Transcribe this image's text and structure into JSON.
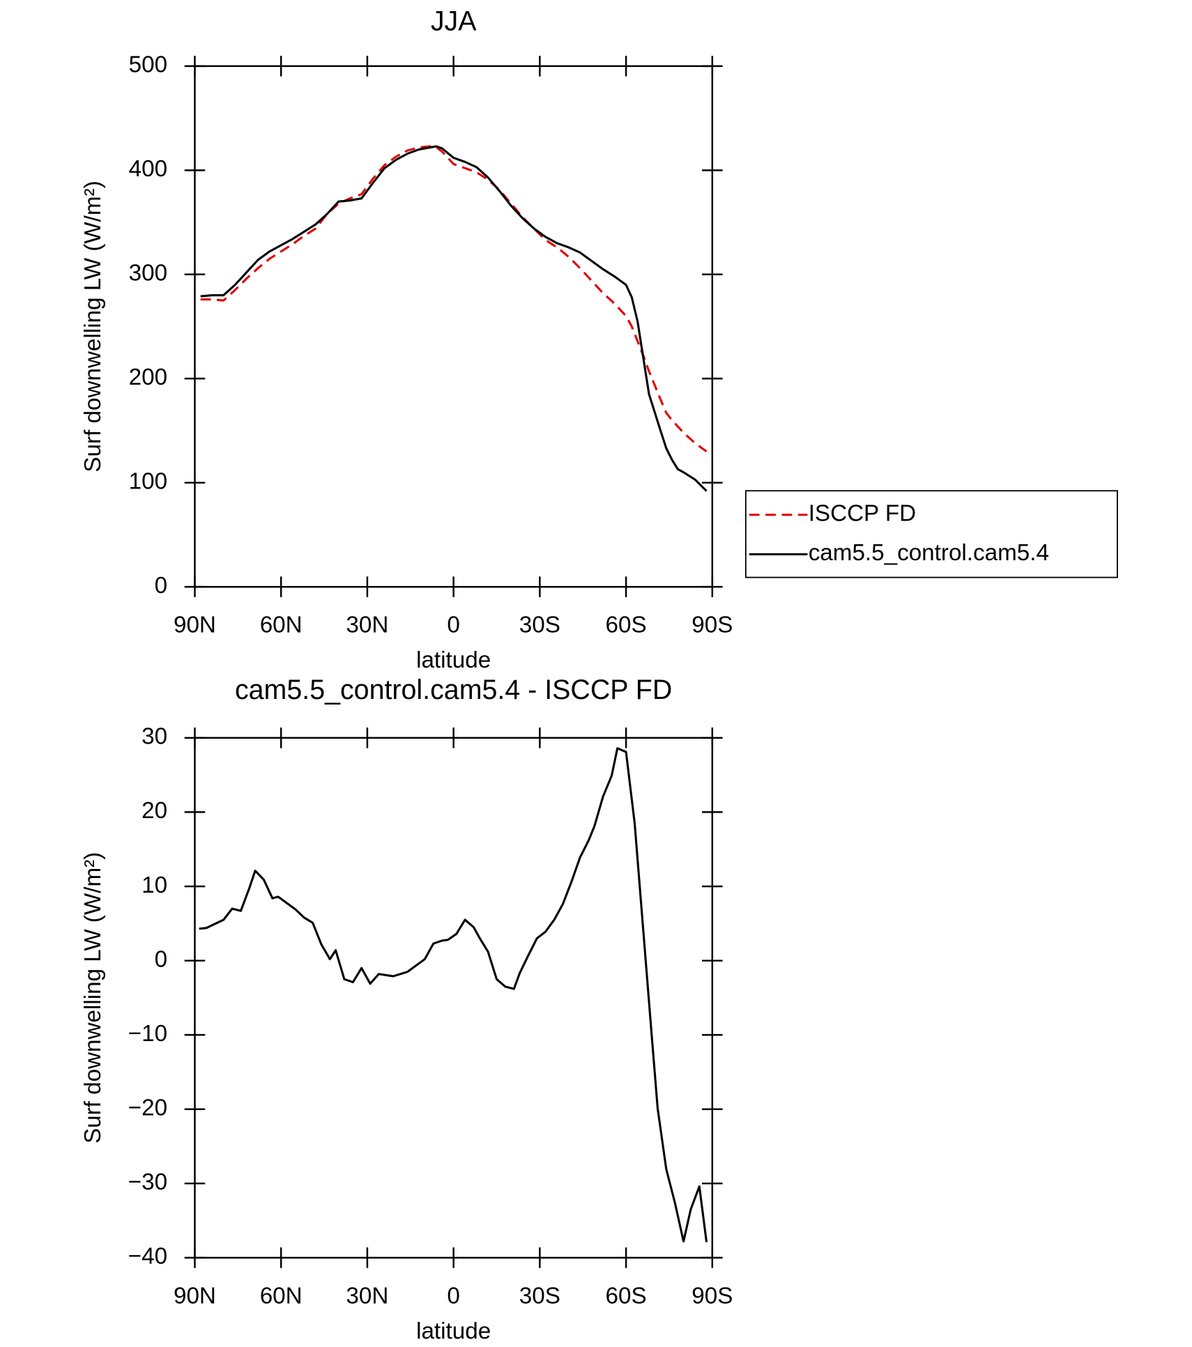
{
  "chart_data": [
    {
      "type": "line",
      "title": "JJA",
      "xlabel": "latitude",
      "ylabel": "Surf downwelling LW (W/m²)",
      "x": [
        88,
        84,
        80,
        76,
        72,
        68,
        64,
        60,
        56,
        52,
        48,
        44,
        40,
        36,
        32,
        28,
        24,
        20,
        16,
        12,
        8,
        6,
        4,
        0,
        -4,
        -8,
        -12,
        -16,
        -20,
        -24,
        -28,
        -32,
        -36,
        -40,
        -44,
        -48,
        -52,
        -56,
        -60,
        -62,
        -64,
        -66,
        -68,
        -72,
        -74,
        -76,
        -78,
        -80,
        -84,
        -88
      ],
      "series": [
        {
          "name": "ISCCP FD",
          "color": "#e00000",
          "dash": true,
          "values": [
            276,
            276,
            275,
            285,
            296,
            306,
            315,
            322,
            329,
            337,
            344,
            358,
            368,
            373,
            377,
            392,
            405,
            413,
            419,
            422,
            423,
            422,
            418,
            406,
            402,
            398,
            391,
            381,
            368,
            355,
            344,
            333,
            326,
            317,
            306,
            294,
            282,
            272,
            260,
            250,
            236,
            222,
            207,
            180,
            167,
            160,
            154,
            148,
            138,
            130
          ]
        },
        {
          "name": "cam5.5_control.cam5.4",
          "color": "#000000",
          "dash": false,
          "values": [
            279,
            280,
            280,
            290,
            302,
            314,
            322,
            328,
            334,
            341,
            348,
            358,
            370,
            371,
            373,
            388,
            402,
            410,
            416,
            420,
            422,
            423,
            421,
            412,
            408,
            403,
            393,
            380,
            366,
            354,
            344,
            336,
            330,
            326,
            321,
            313,
            305,
            298,
            290,
            278,
            255,
            220,
            185,
            150,
            133,
            122,
            113,
            110,
            103,
            92
          ]
        }
      ],
      "xlim": [
        90,
        -90
      ],
      "xticks": [
        {
          "value": 90,
          "label": "90N"
        },
        {
          "value": 60,
          "label": "60N"
        },
        {
          "value": 30,
          "label": "30N"
        },
        0,
        {
          "value": -30,
          "label": "30S"
        },
        {
          "value": -60,
          "label": "60S"
        },
        {
          "value": -90,
          "label": "90S"
        }
      ],
      "ylim": [
        0,
        500
      ],
      "yticks": [
        0,
        100,
        200,
        300,
        400,
        500
      ],
      "legend": "right"
    },
    {
      "type": "line",
      "title": "cam5.5_control.cam5.4 - ISCCP FD",
      "xlabel": "latitude",
      "ylabel": "Surf downwelling LW (W/m²)",
      "x": [
        88.5,
        86,
        80,
        77,
        74,
        71,
        69,
        66,
        63,
        61,
        55,
        52,
        49,
        46,
        43,
        41,
        38,
        35,
        32,
        29,
        26,
        21,
        16,
        10,
        7,
        4,
        2,
        -1,
        -4,
        -7,
        -9,
        -12,
        -15,
        -18,
        -21,
        -23,
        -26,
        -29,
        -32,
        -35,
        -38,
        -41,
        -44,
        -47,
        -49,
        -52,
        -55,
        -57,
        -60,
        -63,
        -69,
        -71,
        -74,
        -77,
        -80,
        -82.5,
        -85.5,
        -88
      ],
      "series": [
        {
          "color": "#000000",
          "dash": false,
          "values": [
            4.3,
            4.4,
            5.5,
            7.0,
            6.7,
            9.8,
            12.1,
            10.9,
            8.4,
            8.6,
            6.9,
            5.8,
            5.1,
            2.2,
            0.2,
            1.4,
            -2.5,
            -2.9,
            -1.0,
            -3.1,
            -1.8,
            -2.1,
            -1.5,
            0.2,
            2.3,
            2.7,
            2.8,
            3.6,
            5.5,
            4.5,
            3.1,
            1.2,
            -2.5,
            -3.5,
            -3.8,
            -1.7,
            0.7,
            3.0,
            3.9,
            5.5,
            7.6,
            10.6,
            13.9,
            16.2,
            18.1,
            22.1,
            24.9,
            28.6,
            28.1,
            18.5,
            -10.4,
            -19.9,
            -28.1,
            -32.6,
            -37.8,
            -33.5,
            -30.4,
            -37.9
          ]
        }
      ],
      "xlim": [
        90,
        -90
      ],
      "xticks": [
        {
          "value": 90,
          "label": "90N"
        },
        {
          "value": 60,
          "label": "60N"
        },
        {
          "value": 30,
          "label": "30N"
        },
        0,
        {
          "value": -30,
          "label": "30S"
        },
        {
          "value": -60,
          "label": "60S"
        },
        {
          "value": -90,
          "label": "90S"
        }
      ],
      "ylim": [
        -40,
        30
      ],
      "yticks": [
        {
          "value": -40,
          "label": "−40"
        },
        {
          "value": -30,
          "label": "−30"
        },
        {
          "value": -20,
          "label": "−20"
        },
        {
          "value": -10,
          "label": "−10"
        },
        0,
        10,
        20,
        30
      ]
    }
  ]
}
